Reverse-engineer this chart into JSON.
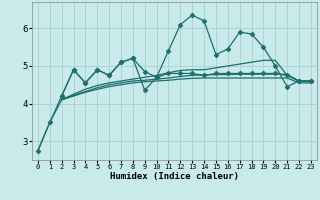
{
  "xlabel": "Humidex (Indice chaleur)",
  "background_color": "#c8eaea",
  "grid_color": "#aacfcf",
  "line_color": "#1e6e6e",
  "xlim": [
    -0.5,
    23.5
  ],
  "ylim": [
    2.5,
    6.7
  ],
  "xticks": [
    0,
    1,
    2,
    3,
    4,
    5,
    6,
    7,
    8,
    9,
    10,
    11,
    12,
    13,
    14,
    15,
    16,
    17,
    18,
    19,
    20,
    21,
    22,
    23
  ],
  "yticks": [
    3,
    4,
    5,
    6
  ],
  "series": [
    {
      "x": [
        0,
        1,
        2,
        3,
        4,
        5,
        6,
        7,
        8,
        9,
        10,
        11,
        12,
        13,
        14,
        15,
        16,
        17,
        18,
        19,
        20,
        21,
        22,
        23
      ],
      "y": [
        2.75,
        3.5,
        4.2,
        4.9,
        4.55,
        4.9,
        4.75,
        5.1,
        5.2,
        4.85,
        4.7,
        4.8,
        4.8,
        4.8,
        4.75,
        4.8,
        4.8,
        4.8,
        4.8,
        4.8,
        4.8,
        4.75,
        4.6,
        4.6
      ],
      "markers": true
    },
    {
      "x": [
        2,
        3,
        4,
        5,
        6,
        7,
        8,
        9,
        10,
        11,
        12,
        13,
        14,
        15,
        16,
        17,
        18,
        19,
        20,
        21,
        22,
        23
      ],
      "y": [
        4.2,
        4.9,
        4.55,
        4.9,
        4.75,
        5.1,
        5.2,
        4.35,
        4.7,
        5.4,
        6.1,
        6.35,
        6.2,
        5.3,
        5.45,
        5.9,
        5.85,
        5.5,
        5.0,
        4.45,
        4.6,
        4.6
      ],
      "markers": true
    },
    {
      "x": [
        0,
        1,
        2,
        3,
        4,
        5,
        6,
        7,
        8,
        9,
        10,
        11,
        12,
        13,
        14,
        15,
        16,
        17,
        18,
        19,
        20,
        21,
        22,
        23
      ],
      "y": [
        2.75,
        3.5,
        4.1,
        4.25,
        4.38,
        4.48,
        4.55,
        4.6,
        4.65,
        4.7,
        4.75,
        4.82,
        4.88,
        4.9,
        4.9,
        4.95,
        5.0,
        5.05,
        5.1,
        5.15,
        5.15,
        4.75,
        4.6,
        4.6
      ],
      "markers": false
    },
    {
      "x": [
        2,
        3,
        4,
        5,
        6,
        7,
        8,
        9,
        10,
        11,
        12,
        13,
        14,
        15,
        16,
        17,
        18,
        19,
        20,
        21,
        22,
        23
      ],
      "y": [
        4.1,
        4.22,
        4.32,
        4.42,
        4.5,
        4.55,
        4.6,
        4.62,
        4.65,
        4.68,
        4.72,
        4.75,
        4.76,
        4.77,
        4.77,
        4.78,
        4.78,
        4.78,
        4.78,
        4.78,
        4.6,
        4.6
      ],
      "markers": false
    },
    {
      "x": [
        2,
        3,
        4,
        5,
        6,
        7,
        8,
        9,
        10,
        11,
        12,
        13,
        14,
        15,
        16,
        17,
        18,
        19,
        20,
        21,
        22,
        23
      ],
      "y": [
        4.1,
        4.2,
        4.3,
        4.38,
        4.45,
        4.5,
        4.55,
        4.58,
        4.6,
        4.62,
        4.65,
        4.67,
        4.68,
        4.68,
        4.68,
        4.68,
        4.68,
        4.68,
        4.68,
        4.68,
        4.55,
        4.55
      ],
      "markers": false
    }
  ]
}
